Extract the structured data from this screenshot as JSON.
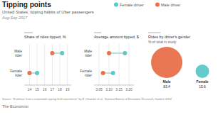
{
  "title": "Tipping points",
  "subtitle": "United States, tipping habits of Uber passengers",
  "annotations": [
    "Aug-Sep 2017",
    "Source: \"Evidence from a nationwide tipping field experiment\" by B. Chandar et al., National Bureau of Economic Research, October 2019",
    "The Economist"
  ],
  "chart_data": [
    {
      "type": "dumbbell",
      "title": "Share of rides tipped, %",
      "categories": [
        "Male\nrider",
        "Female\nrider"
      ],
      "series": [
        {
          "name": "Female driver",
          "color": "#5bc8c8",
          "values": [
            18.3,
            15.0
          ]
        },
        {
          "name": "Male driver",
          "color": "#e8704a",
          "values": [
            17.0,
            14.0
          ]
        }
      ],
      "xlim": [
        13.3,
        19.5
      ],
      "xticks": [
        14,
        15,
        16,
        17,
        18,
        19
      ],
      "grid": true,
      "legend": "upper right",
      "color": "#b8dde0"
    },
    {
      "type": "dumbbell",
      "title": "Average amount tipped, $",
      "categories": [
        "Male\nrider",
        "Female\nrider"
      ],
      "series": [
        {
          "name": "Female driver",
          "color": "#5bc8c8",
          "values": [
            3.18,
            3.12
          ]
        },
        {
          "name": "Male driver",
          "color": "#e8704a",
          "values": [
            3.1,
            3.07
          ]
        }
      ],
      "xlim": [
        3.025,
        3.225
      ],
      "xticks": [
        3.05,
        {
          "value": 3.1,
          "label": "3.10"
        },
        3.15,
        {
          "value": 3.2,
          "label": "3.20"
        }
      ],
      "grid": true,
      "color": "#b8dde0"
    },
    {
      "type": "bubble",
      "title": "Rides by driver's gender",
      "subtitle": "% of total in study",
      "categories": [
        "Male",
        "Female"
      ],
      "values": [
        83.4,
        15.6
      ],
      "colors": [
        "#e8704a",
        "#5bc8c8"
      ],
      "data_labels": true,
      "tick_labels": false
    }
  ]
}
